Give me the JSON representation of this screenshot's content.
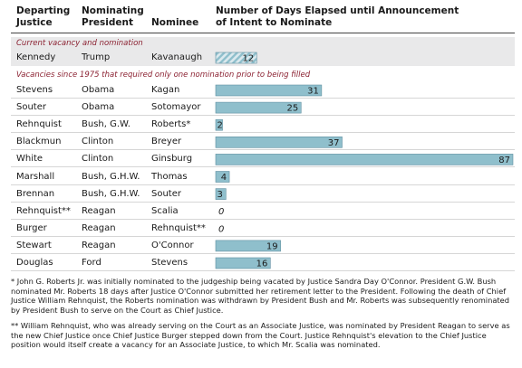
{
  "headers": {
    "departing": [
      "Departing",
      "Justice"
    ],
    "nominating": [
      "Nominating",
      "President"
    ],
    "nominee": "Nominee",
    "days": [
      "Number of Days Elapsed until Announcement",
      "of Intent to Nominate"
    ]
  },
  "sections": {
    "current": "Current vacancy and nomination",
    "past": "Vacancies since 1975 that required only one nomination prior to being  filled"
  },
  "colors": {
    "bar": "#8fbfcc",
    "bar_border": "#5f8fa0",
    "hatch": "#8fbfcc",
    "section_text": "#8b2131"
  },
  "chart_data": {
    "type": "bar",
    "orientation": "horizontal",
    "current": [
      {
        "justice": "Kennedy",
        "president": "Trump",
        "nominee": "Kavanaugh",
        "days": 12
      }
    ],
    "rows": [
      {
        "justice": "Stevens",
        "president": "Obama",
        "nominee": "Kagan",
        "days": 31
      },
      {
        "justice": "Souter",
        "president": "Obama",
        "nominee": "Sotomayor",
        "days": 25
      },
      {
        "justice": "Rehnquist",
        "president": "Bush, G.W.",
        "nominee": "Roberts*",
        "days": 2
      },
      {
        "justice": "Blackmun",
        "president": "Clinton",
        "nominee": "Breyer",
        "days": 37
      },
      {
        "justice": "White",
        "president": "Clinton",
        "nominee": "Ginsburg",
        "days": 87
      },
      {
        "justice": "Marshall",
        "president": "Bush, G.H.W.",
        "nominee": "Thomas",
        "days": 4
      },
      {
        "justice": "Brennan",
        "president": "Bush, G.H.W.",
        "nominee": "Souter",
        "days": 3
      },
      {
        "justice": "Rehnquist**",
        "president": "Reagan",
        "nominee": "Scalia",
        "days": 0
      },
      {
        "justice": "Burger",
        "president": "Reagan",
        "nominee": "Rehnquist**",
        "days": 0
      },
      {
        "justice": "Stewart",
        "president": "Reagan",
        "nominee": "O'Connor",
        "days": 19
      },
      {
        "justice": "Douglas",
        "president": "Ford",
        "nominee": "Stevens",
        "days": 16
      }
    ],
    "xlim": [
      0,
      87
    ]
  },
  "footnotes": {
    "single": "* John G. Roberts Jr. was initially nominated to the judgeship being vacated by Justice Sandra Day O'Connor. President G.W. Bush nominated Mr. Roberts 18 days after Justice O'Connor submitted her retirement letter to the President. Following the death of Chief Justice William Rehnquist, the Roberts nomination was withdrawn by President Bush and Mr. Roberts was subsequently renominated by President Bush to serve on the Court as Chief Justice.",
    "double": "** William Rehnquist, who was already serving on the Court as an Associate Justice, was nominated by President Reagan to serve as the new Chief Justice once Chief Justice Burger stepped down from the Court. Justice Rehnquist's elevation to the Chief Justice position would itself create a vacancy for an Associate Justice, to which Mr. Scalia was nominated."
  }
}
